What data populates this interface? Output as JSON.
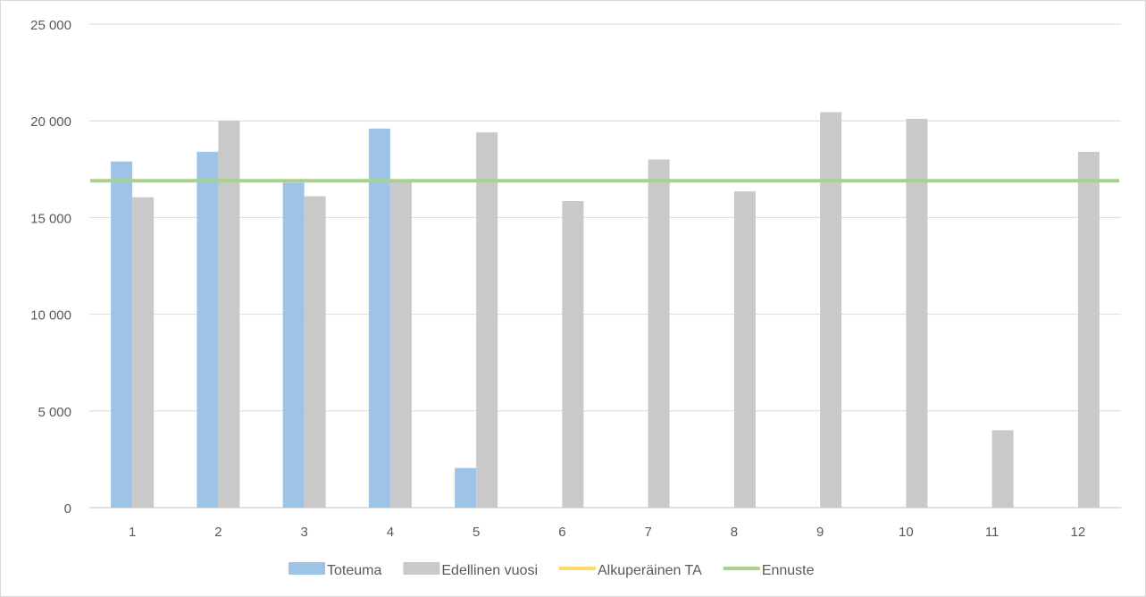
{
  "chart_data": {
    "type": "bar",
    "categories": [
      "1",
      "2",
      "3",
      "4",
      "5",
      "6",
      "7",
      "8",
      "9",
      "10",
      "11",
      "12"
    ],
    "ylim": [
      0,
      25000
    ],
    "yticks": [
      0,
      5000,
      10000,
      15000,
      20000,
      25000
    ],
    "ytick_labels": [
      "0",
      "5 000",
      "10 000",
      "15 000",
      "20 000",
      "25 000"
    ],
    "grid": true,
    "legend_position": "bottom",
    "series": [
      {
        "name": "Toteuma",
        "kind": "bar",
        "color": "#9dc3e6",
        "values": [
          17900,
          18400,
          16800,
          19600,
          2050,
          null,
          null,
          null,
          null,
          null,
          null,
          null
        ]
      },
      {
        "name": "Edellinen vuosi",
        "kind": "bar",
        "color": "#c9c9c9",
        "values": [
          16050,
          20000,
          16100,
          16900,
          19400,
          15850,
          18000,
          16350,
          20450,
          20100,
          4000,
          18400
        ]
      },
      {
        "name": "Alkuperäinen TA",
        "kind": "line",
        "color": "#ffd966",
        "values": [
          null,
          null,
          null,
          null,
          null,
          null,
          null,
          null,
          null,
          null,
          null,
          null
        ]
      },
      {
        "name": "Ennuste",
        "kind": "line",
        "color": "#a9d18e",
        "values": [
          16900,
          16900,
          16900,
          16900,
          16900,
          16900,
          16900,
          16900,
          16900,
          16900,
          16900,
          16900
        ]
      }
    ]
  }
}
